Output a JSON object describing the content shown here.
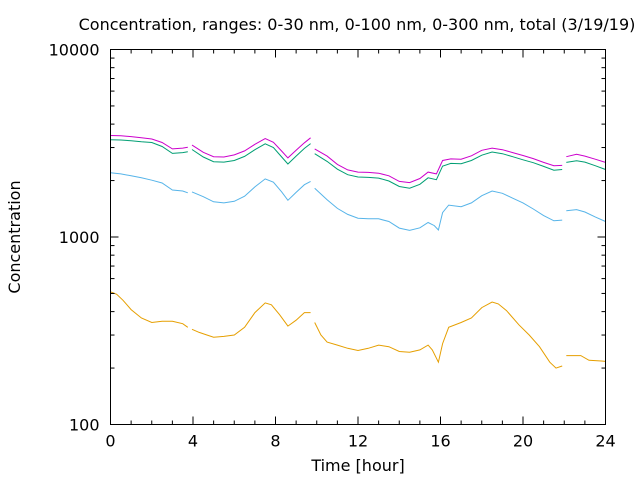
{
  "chart_data": {
    "type": "line",
    "title": "Concentration, ranges: 0-30 nm, 0-100 nm, 0-300 nm, total (3/19/19)",
    "xlabel": "Time [hour]",
    "ylabel": "Concentration",
    "xlim": [
      0,
      24
    ],
    "ylim": [
      100,
      10000
    ],
    "yscale": "log",
    "xticks": [
      0,
      4,
      8,
      12,
      16,
      20,
      24
    ],
    "xtick_labels": [
      "0",
      "4",
      "8",
      "12",
      "16",
      "20",
      "24"
    ],
    "yticks": [
      100,
      1000,
      10000
    ],
    "ytick_labels": [
      "100",
      "1000",
      "10000"
    ],
    "grid": false,
    "legend": "none",
    "series": [
      {
        "color": "#e69f00",
        "segments": [
          [
            [
              0.0,
              510
            ],
            [
              0.3,
              495
            ],
            [
              0.6,
              460
            ],
            [
              1.0,
              410
            ],
            [
              1.5,
              370
            ],
            [
              2.0,
              350
            ],
            [
              2.5,
              355
            ],
            [
              3.0,
              355
            ],
            [
              3.5,
              345
            ],
            [
              3.75,
              330
            ]
          ],
          [
            [
              3.95,
              322
            ],
            [
              4.3,
              310
            ],
            [
              4.6,
              302
            ],
            [
              5.0,
              292
            ],
            [
              5.5,
              295
            ],
            [
              6.0,
              300
            ],
            [
              6.5,
              330
            ],
            [
              7.0,
              395
            ],
            [
              7.5,
              445
            ],
            [
              7.8,
              435
            ],
            [
              8.2,
              385
            ],
            [
              8.6,
              335
            ],
            [
              9.0,
              360
            ],
            [
              9.4,
              395
            ],
            [
              9.7,
              395
            ]
          ],
          [
            [
              9.9,
              350
            ],
            [
              10.2,
              300
            ],
            [
              10.5,
              275
            ],
            [
              11.0,
              265
            ],
            [
              11.5,
              255
            ],
            [
              12.0,
              248
            ],
            [
              12.5,
              255
            ],
            [
              13.0,
              265
            ],
            [
              13.5,
              260
            ],
            [
              14.0,
              245
            ],
            [
              14.5,
              243
            ],
            [
              15.0,
              250
            ],
            [
              15.4,
              265
            ],
            [
              15.6,
              250
            ],
            [
              15.9,
              215
            ],
            [
              16.1,
              270
            ],
            [
              16.4,
              330
            ],
            [
              17.0,
              350
            ],
            [
              17.5,
              370
            ],
            [
              18.0,
              420
            ],
            [
              18.5,
              450
            ],
            [
              18.8,
              440
            ],
            [
              19.2,
              405
            ],
            [
              19.8,
              340
            ],
            [
              20.3,
              300
            ],
            [
              20.8,
              260
            ],
            [
              21.3,
              215
            ],
            [
              21.6,
              200
            ],
            [
              21.9,
              205
            ]
          ],
          [
            [
              22.1,
              233
            ],
            [
              22.8,
              233
            ],
            [
              23.2,
              220
            ],
            [
              23.8,
              218
            ],
            [
              24.0,
              217
            ]
          ]
        ]
      },
      {
        "color": "#56b4e9",
        "segments": [
          [
            [
              0.0,
              2200
            ],
            [
              0.5,
              2170
            ],
            [
              1.0,
              2120
            ],
            [
              1.5,
              2070
            ],
            [
              2.0,
              2010
            ],
            [
              2.5,
              1940
            ],
            [
              3.0,
              1780
            ],
            [
              3.5,
              1760
            ],
            [
              3.75,
              1720
            ]
          ],
          [
            [
              3.95,
              1740
            ],
            [
              4.5,
              1640
            ],
            [
              5.0,
              1540
            ],
            [
              5.5,
              1520
            ],
            [
              6.0,
              1550
            ],
            [
              6.5,
              1650
            ],
            [
              7.0,
              1850
            ],
            [
              7.5,
              2040
            ],
            [
              7.9,
              1960
            ],
            [
              8.3,
              1740
            ],
            [
              8.6,
              1570
            ],
            [
              9.0,
              1730
            ],
            [
              9.4,
              1900
            ],
            [
              9.7,
              1980
            ]
          ],
          [
            [
              9.9,
              1820
            ],
            [
              10.5,
              1580
            ],
            [
              11.0,
              1420
            ],
            [
              11.5,
              1320
            ],
            [
              12.0,
              1260
            ],
            [
              12.5,
              1250
            ],
            [
              13.0,
              1250
            ],
            [
              13.5,
              1210
            ],
            [
              14.0,
              1115
            ],
            [
              14.5,
              1085
            ],
            [
              15.0,
              1120
            ],
            [
              15.4,
              1195
            ],
            [
              15.7,
              1150
            ],
            [
              15.9,
              1090
            ],
            [
              16.1,
              1350
            ],
            [
              16.4,
              1480
            ],
            [
              17.0,
              1450
            ],
            [
              17.5,
              1520
            ],
            [
              18.0,
              1660
            ],
            [
              18.5,
              1760
            ],
            [
              19.0,
              1710
            ],
            [
              19.5,
              1610
            ],
            [
              20.0,
              1520
            ],
            [
              20.5,
              1410
            ],
            [
              21.0,
              1300
            ],
            [
              21.5,
              1220
            ],
            [
              21.9,
              1230
            ]
          ],
          [
            [
              22.1,
              1380
            ],
            [
              22.6,
              1400
            ],
            [
              23.0,
              1360
            ],
            [
              23.5,
              1280
            ],
            [
              24.0,
              1210
            ]
          ]
        ]
      },
      {
        "color": "#009e73",
        "segments": [
          [
            [
              0.0,
              3300
            ],
            [
              0.5,
              3290
            ],
            [
              1.0,
              3260
            ],
            [
              1.5,
              3220
            ],
            [
              2.0,
              3190
            ],
            [
              2.5,
              3040
            ],
            [
              3.0,
              2790
            ],
            [
              3.5,
              2820
            ],
            [
              3.75,
              2850
            ]
          ],
          [
            [
              3.95,
              2930
            ],
            [
              4.5,
              2670
            ],
            [
              5.0,
              2520
            ],
            [
              5.5,
              2510
            ],
            [
              6.0,
              2560
            ],
            [
              6.5,
              2690
            ],
            [
              7.0,
              2920
            ],
            [
              7.5,
              3140
            ],
            [
              7.9,
              3000
            ],
            [
              8.3,
              2670
            ],
            [
              8.6,
              2450
            ],
            [
              9.0,
              2700
            ],
            [
              9.4,
              2970
            ],
            [
              9.7,
              3150
            ]
          ],
          [
            [
              9.9,
              2780
            ],
            [
              10.5,
              2530
            ],
            [
              11.0,
              2300
            ],
            [
              11.5,
              2150
            ],
            [
              12.0,
              2090
            ],
            [
              12.5,
              2080
            ],
            [
              13.0,
              2060
            ],
            [
              13.5,
              1990
            ],
            [
              14.0,
              1860
            ],
            [
              14.5,
              1820
            ],
            [
              15.0,
              1910
            ],
            [
              15.4,
              2070
            ],
            [
              15.8,
              2020
            ],
            [
              16.1,
              2390
            ],
            [
              16.5,
              2470
            ],
            [
              17.0,
              2460
            ],
            [
              17.5,
              2560
            ],
            [
              18.0,
              2730
            ],
            [
              18.5,
              2840
            ],
            [
              19.0,
              2780
            ],
            [
              19.5,
              2680
            ],
            [
              20.0,
              2580
            ],
            [
              20.5,
              2490
            ],
            [
              21.0,
              2380
            ],
            [
              21.5,
              2270
            ],
            [
              21.9,
              2290
            ]
          ],
          [
            [
              22.1,
              2500
            ],
            [
              22.6,
              2550
            ],
            [
              23.0,
              2510
            ],
            [
              23.5,
              2400
            ],
            [
              24.0,
              2290
            ]
          ]
        ]
      },
      {
        "color": "#cc00cc",
        "segments": [
          [
            [
              0.0,
              3480
            ],
            [
              0.5,
              3470
            ],
            [
              1.0,
              3430
            ],
            [
              1.5,
              3380
            ],
            [
              2.0,
              3330
            ],
            [
              2.5,
              3190
            ],
            [
              3.0,
              2950
            ],
            [
              3.5,
              2980
            ],
            [
              3.75,
              3010
            ]
          ],
          [
            [
              3.95,
              3090
            ],
            [
              4.5,
              2830
            ],
            [
              5.0,
              2680
            ],
            [
              5.5,
              2670
            ],
            [
              6.0,
              2740
            ],
            [
              6.5,
              2880
            ],
            [
              7.0,
              3120
            ],
            [
              7.5,
              3350
            ],
            [
              7.9,
              3200
            ],
            [
              8.3,
              2870
            ],
            [
              8.6,
              2640
            ],
            [
              9.0,
              2900
            ],
            [
              9.4,
              3180
            ],
            [
              9.7,
              3380
            ]
          ],
          [
            [
              9.9,
              2950
            ],
            [
              10.5,
              2700
            ],
            [
              11.0,
              2440
            ],
            [
              11.5,
              2280
            ],
            [
              12.0,
              2220
            ],
            [
              12.5,
              2210
            ],
            [
              13.0,
              2190
            ],
            [
              13.5,
              2120
            ],
            [
              14.0,
              1980
            ],
            [
              14.5,
              1950
            ],
            [
              15.0,
              2050
            ],
            [
              15.4,
              2220
            ],
            [
              15.8,
              2170
            ],
            [
              16.1,
              2560
            ],
            [
              16.5,
              2610
            ],
            [
              17.0,
              2600
            ],
            [
              17.5,
              2710
            ],
            [
              18.0,
              2900
            ],
            [
              18.5,
              2980
            ],
            [
              19.0,
              2920
            ],
            [
              19.5,
              2820
            ],
            [
              20.0,
              2720
            ],
            [
              20.5,
              2620
            ],
            [
              21.0,
              2500
            ],
            [
              21.5,
              2400
            ],
            [
              21.9,
              2410
            ]
          ],
          [
            [
              22.1,
              2680
            ],
            [
              22.6,
              2760
            ],
            [
              23.0,
              2700
            ],
            [
              23.5,
              2600
            ],
            [
              24.0,
              2500
            ]
          ]
        ]
      }
    ]
  }
}
